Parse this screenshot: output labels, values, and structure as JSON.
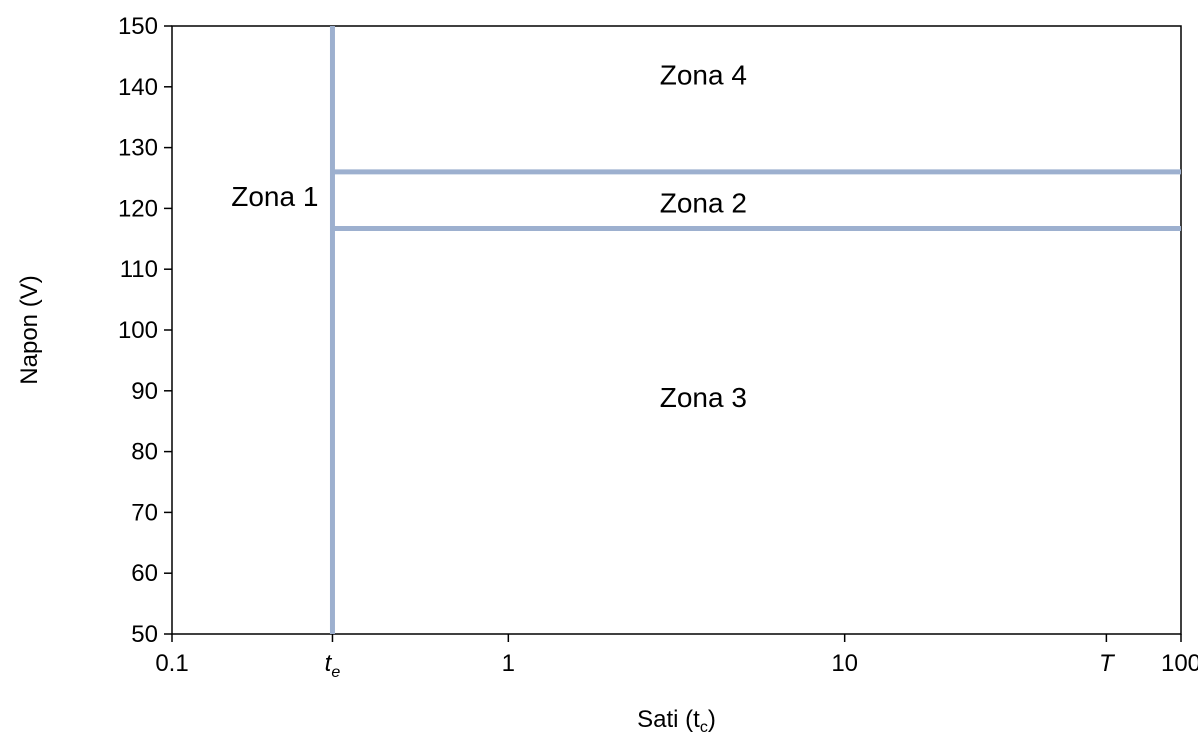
{
  "chart_data": {
    "type": "line",
    "xscale": "log",
    "xlim": [
      0.1,
      100
    ],
    "ylim": [
      50,
      150
    ],
    "xlabel": "Sati (t",
    "xlabel_sub": "c",
    "xlabel_end": ")",
    "ylabel": "Napon (V)",
    "grid": false,
    "line_color": "#9db0cf",
    "x_ticks": [
      0.1,
      1,
      10,
      100
    ],
    "x_tick_labels": [
      "0.1",
      "1",
      "10",
      "100"
    ],
    "y_ticks": [
      50,
      60,
      70,
      80,
      90,
      100,
      110,
      120,
      130,
      140,
      150
    ],
    "y_tick_labels": [
      "50",
      "60",
      "70",
      "80",
      "90",
      "100",
      "110",
      "120",
      "130",
      "140",
      "150"
    ],
    "markers": [
      {
        "x": 0.3,
        "label": "t",
        "sub": "e"
      },
      {
        "x": 60,
        "label": "T"
      }
    ],
    "boundaries": [
      {
        "kind": "vertical",
        "x": 0.3,
        "y_from": 50,
        "y_to": 150
      },
      {
        "kind": "horizontal",
        "y": 126,
        "x_from": 0.3,
        "x_to": 100
      },
      {
        "kind": "horizontal",
        "y": 116.7,
        "x_from": 0.3,
        "x_to": 100
      }
    ],
    "zones": [
      {
        "label": "Zona 1",
        "x": 0.15,
        "y": 122
      },
      {
        "label": "Zona 2",
        "x": 3.8,
        "y": 121
      },
      {
        "label": "Zona 3",
        "x": 3.8,
        "y": 89
      },
      {
        "label": "Zona 4",
        "x": 3.8,
        "y": 142
      }
    ]
  }
}
